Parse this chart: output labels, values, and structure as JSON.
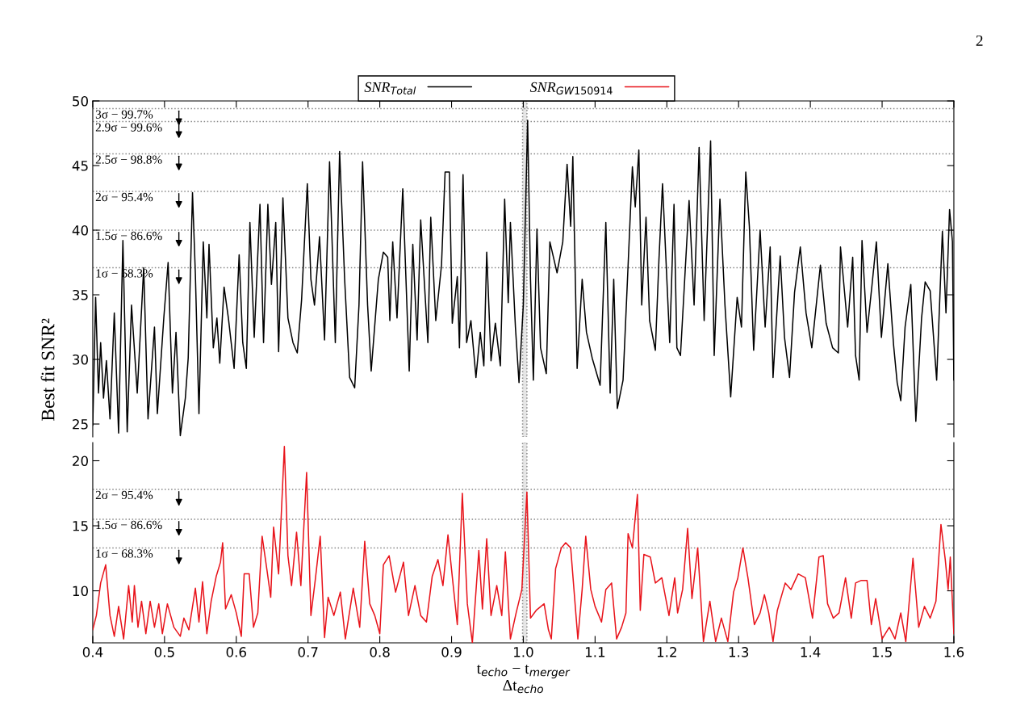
{
  "chart_data": [
    {
      "type": "line",
      "ylabel": "Best fit SNR²",
      "annotations": [
        "2"
      ],
      "legend": "top",
      "tick_labels": "y",
      "marker": "none",
      "line_style": "solid",
      "xlim": [
        0.4,
        1.6
      ],
      "xticks": [
        0.4,
        0.5,
        0.6,
        0.7,
        0.8,
        0.9,
        1.0,
        1.1,
        1.2,
        1.3,
        1.4,
        1.5,
        1.6
      ],
      "ylim": [
        24.0,
        50
      ],
      "yticks": [
        25,
        30,
        35,
        40,
        45,
        50
      ],
      "ref_lines": [
        {
          "axis": "y",
          "value": 49.4,
          "label": "3σ − 99.7%",
          "color": "#888888",
          "line_style": "dotted"
        },
        {
          "axis": "y",
          "value": 48.4,
          "label": "2.9σ − 99.6%",
          "color": "#888888",
          "line_style": "dotted"
        },
        {
          "axis": "y",
          "value": 45.9,
          "label": "2.5σ − 98.8%",
          "color": "#888888",
          "line_style": "dotted"
        },
        {
          "axis": "y",
          "value": 43.0,
          "label": "2σ − 95.4%",
          "color": "#888888",
          "line_style": "dotted"
        },
        {
          "axis": "y",
          "value": 40.0,
          "label": "1.5σ − 86.6%",
          "color": "#888888",
          "line_style": "dotted"
        },
        {
          "axis": "y",
          "value": 37.1,
          "label": "1σ − 68.3%",
          "color": "#888888",
          "line_style": "dotted"
        }
      ],
      "bands": [
        {
          "axis": "x",
          "from": 0.999,
          "to": 1.005,
          "color": "#e6e6e6"
        }
      ],
      "series": [
        {
          "name": "SNR$_{Total}$",
          "color": "#000000",
          "x": [
            0.4,
            0.404,
            0.408,
            0.411,
            0.415,
            0.419,
            0.424,
            0.43,
            0.436,
            0.442,
            0.448,
            0.454,
            0.462,
            0.471,
            0.477,
            0.486,
            0.49,
            0.499,
            0.505,
            0.511,
            0.516,
            0.522,
            0.529,
            0.533,
            0.539,
            0.543,
            0.548,
            0.554,
            0.559,
            0.562,
            0.568,
            0.573,
            0.577,
            0.583,
            0.589,
            0.597,
            0.604,
            0.609,
            0.614,
            0.619,
            0.625,
            0.633,
            0.638,
            0.644,
            0.649,
            0.655,
            0.659,
            0.665,
            0.672,
            0.679,
            0.685,
            0.691,
            0.699,
            0.704,
            0.709,
            0.716,
            0.723,
            0.73,
            0.738,
            0.744,
            0.751,
            0.758,
            0.765,
            0.771,
            0.776,
            0.783,
            0.788,
            0.798,
            0.805,
            0.811,
            0.814,
            0.818,
            0.824,
            0.832,
            0.841,
            0.846,
            0.852,
            0.857,
            0.867,
            0.871,
            0.878,
            0.886,
            0.891,
            0.897,
            0.901,
            0.908,
            0.911,
            0.916,
            0.921,
            0.927,
            0.934,
            0.94,
            0.945,
            0.949,
            0.955,
            0.961,
            0.968,
            0.974,
            0.979,
            0.982,
            0.989,
            0.994,
            1.0,
            1.006,
            1.01,
            1.014,
            1.019,
            1.024,
            1.032,
            1.037,
            1.047,
            1.055,
            1.061,
            1.066,
            1.069,
            1.075,
            1.082,
            1.088,
            1.096,
            1.107,
            1.115,
            1.121,
            1.126,
            1.131,
            1.139,
            1.145,
            1.152,
            1.156,
            1.161,
            1.165,
            1.171,
            1.176,
            1.184,
            1.189,
            1.194,
            1.204,
            1.21,
            1.214,
            1.219,
            1.231,
            1.238,
            1.245,
            1.252,
            1.261,
            1.266,
            1.274,
            1.281,
            1.289,
            1.298,
            1.304,
            1.31,
            1.315,
            1.321,
            1.33,
            1.337,
            1.344,
            1.348,
            1.358,
            1.364,
            1.371,
            1.378,
            1.386,
            1.394,
            1.402,
            1.414,
            1.422,
            1.431,
            1.439,
            1.442,
            1.452,
            1.459,
            1.463,
            1.468,
            1.472,
            1.479,
            1.486,
            1.492,
            1.499,
            1.508,
            1.516,
            1.521,
            1.526,
            1.532,
            1.54,
            1.547,
            1.555,
            1.56,
            1.567,
            1.576,
            1.584,
            1.589,
            1.594,
            1.598,
            1.6
          ],
          "values": [
            24.9,
            34.8,
            27.4,
            31.3,
            27.0,
            29.9,
            25.4,
            33.6,
            24.3,
            39.2,
            24.4,
            34.2,
            27.4,
            37.1,
            25.4,
            32.5,
            25.8,
            33.2,
            37.5,
            27.4,
            32.1,
            24.1,
            27.0,
            30.1,
            42.9,
            36.6,
            25.8,
            39.1,
            33.2,
            38.9,
            30.9,
            33.2,
            29.7,
            35.6,
            33.2,
            29.3,
            38.1,
            31.3,
            29.3,
            40.6,
            31.7,
            42.0,
            31.3,
            42.0,
            35.8,
            40.6,
            30.6,
            42.5,
            33.2,
            31.3,
            30.5,
            34.6,
            43.6,
            36.2,
            34.2,
            39.5,
            31.5,
            45.3,
            31.3,
            46.1,
            36.2,
            28.6,
            27.8,
            34.2,
            45.3,
            34.2,
            29.1,
            36.2,
            38.3,
            37.9,
            33.0,
            39.1,
            33.2,
            43.2,
            29.1,
            38.9,
            31.5,
            40.8,
            31.3,
            41.0,
            33.0,
            37.3,
            44.5,
            44.5,
            32.8,
            36.4,
            30.9,
            44.3,
            31.3,
            33.0,
            28.6,
            32.1,
            29.5,
            38.3,
            29.9,
            32.8,
            29.5,
            42.4,
            34.4,
            40.6,
            32.5,
            28.2,
            34.2,
            48.5,
            36.2,
            28.4,
            40.1,
            30.9,
            28.9,
            39.1,
            36.7,
            39.1,
            45.1,
            40.3,
            45.7,
            29.3,
            36.2,
            32.1,
            30.1,
            28.0,
            40.6,
            27.4,
            36.2,
            26.2,
            28.4,
            36.0,
            44.9,
            41.8,
            46.2,
            34.2,
            41.0,
            33.0,
            30.7,
            37.7,
            43.6,
            31.3,
            42.0,
            30.9,
            30.3,
            42.3,
            34.2,
            46.4,
            33.0,
            46.9,
            30.3,
            42.4,
            34.2,
            27.1,
            34.8,
            32.5,
            44.5,
            40.3,
            30.7,
            40.0,
            32.5,
            38.7,
            28.6,
            38.0,
            31.7,
            28.6,
            35.2,
            38.7,
            33.6,
            30.9,
            37.3,
            32.8,
            30.9,
            30.5,
            38.7,
            32.5,
            37.9,
            30.3,
            28.4,
            39.2,
            32.1,
            35.8,
            39.1,
            31.7,
            37.4,
            31.1,
            28.2,
            26.8,
            32.5,
            35.8,
            25.2,
            33.2,
            36.0,
            35.3,
            28.4,
            39.9,
            33.6,
            41.6,
            39.1,
            28.4
          ]
        }
      ]
    },
    {
      "type": "line",
      "xlabel": "t$_{echo}$ − t$_{merger}$\nΔt$_{echo}$",
      "legend": "top",
      "marker": "none",
      "line_style": "solid",
      "xlim": [
        0.4,
        1.6
      ],
      "xticks": [
        0.4,
        0.5,
        0.6,
        0.7,
        0.8,
        0.9,
        {
          "value": 1.0,
          "label": "1.0"
        },
        1.1,
        1.2,
        1.3,
        1.4,
        1.5,
        1.6
      ],
      "ylim": [
        6,
        21.4
      ],
      "yticks": [
        10,
        15,
        20
      ],
      "ref_lines": [
        {
          "axis": "y",
          "value": 17.8,
          "label": "2σ − 95.4%",
          "color": "#888888",
          "line_style": "dotted"
        },
        {
          "axis": "y",
          "value": 15.5,
          "label": "1.5σ − 86.6%",
          "color": "#888888",
          "line_style": "dotted"
        },
        {
          "axis": "y",
          "value": 13.3,
          "label": "1σ − 68.3%",
          "color": "#888888",
          "line_style": "dotted"
        }
      ],
      "bands": [
        {
          "axis": "x",
          "from": 0.999,
          "to": 1.005,
          "color": "#e6e6e6"
        }
      ],
      "series": [
        {
          "name": "SNR$_{GW150914}$",
          "color": "#e8141b",
          "x": [
            0.4,
            0.405,
            0.411,
            0.418,
            0.424,
            0.43,
            0.436,
            0.443,
            0.45,
            0.455,
            0.458,
            0.463,
            0.468,
            0.474,
            0.48,
            0.486,
            0.492,
            0.497,
            0.504,
            0.513,
            0.522,
            0.527,
            0.534,
            0.543,
            0.548,
            0.553,
            0.559,
            0.565,
            0.572,
            0.578,
            0.581,
            0.585,
            0.593,
            0.6,
            0.607,
            0.611,
            0.618,
            0.624,
            0.63,
            0.636,
            0.643,
            0.648,
            0.652,
            0.659,
            0.667,
            0.672,
            0.677,
            0.684,
            0.69,
            0.698,
            0.704,
            0.71,
            0.717,
            0.723,
            0.728,
            0.736,
            0.745,
            0.752,
            0.763,
            0.772,
            0.779,
            0.786,
            0.793,
            0.8,
            0.805,
            0.813,
            0.822,
            0.833,
            0.84,
            0.849,
            0.857,
            0.865,
            0.873,
            0.881,
            0.888,
            0.895,
            0.901,
            0.908,
            0.915,
            0.922,
            0.929,
            0.938,
            0.943,
            0.949,
            0.955,
            0.963,
            0.97,
            0.975,
            0.982,
            0.99,
            0.998,
            1.005,
            1.01,
            1.018,
            1.029,
            1.035,
            1.039,
            1.045,
            1.053,
            1.059,
            1.066,
            1.076,
            1.082,
            1.087,
            1.094,
            1.1,
            1.109,
            1.115,
            1.123,
            1.13,
            1.137,
            1.143,
            1.146,
            1.152,
            1.159,
            1.163,
            1.168,
            1.177,
            1.184,
            1.193,
            1.203,
            1.211,
            1.215,
            1.222,
            1.229,
            1.235,
            1.243,
            1.251,
            1.26,
            1.268,
            1.276,
            1.285,
            1.293,
            1.299,
            1.306,
            1.313,
            1.322,
            1.33,
            1.336,
            1.342,
            1.348,
            1.354,
            1.365,
            1.373,
            1.383,
            1.393,
            1.403,
            1.412,
            1.418,
            1.424,
            1.432,
            1.44,
            1.449,
            1.457,
            1.463,
            1.471,
            1.479,
            1.485,
            1.491,
            1.5,
            1.51,
            1.518,
            1.526,
            1.533,
            1.543,
            1.551,
            1.559,
            1.567,
            1.575,
            1.582,
            1.588,
            1.592,
            1.595,
            1.6
          ],
          "values": [
            7.0,
            8.1,
            10.6,
            12.0,
            8.1,
            6.5,
            8.8,
            6.3,
            10.4,
            7.6,
            10.4,
            7.2,
            9.2,
            6.7,
            9.2,
            7.2,
            9.0,
            6.7,
            9.0,
            7.2,
            6.5,
            7.9,
            7.0,
            10.2,
            7.6,
            10.7,
            6.7,
            9.2,
            11.1,
            12.2,
            13.7,
            8.6,
            9.7,
            8.3,
            6.5,
            11.3,
            11.3,
            7.2,
            8.3,
            14.2,
            11.5,
            9.5,
            14.9,
            11.3,
            21.1,
            12.7,
            10.4,
            14.5,
            10.4,
            19.1,
            8.1,
            10.8,
            14.2,
            6.4,
            9.5,
            8.1,
            9.9,
            6.3,
            10.2,
            7.2,
            13.8,
            9.0,
            8.1,
            6.7,
            12.0,
            12.7,
            9.9,
            12.2,
            8.1,
            10.4,
            8.1,
            7.6,
            11.1,
            12.4,
            10.4,
            14.3,
            11.1,
            7.4,
            17.5,
            9.0,
            6.0,
            13.1,
            8.6,
            14.0,
            8.1,
            10.4,
            8.1,
            13.0,
            6.3,
            8.3,
            10.1,
            17.6,
            7.9,
            8.5,
            9.0,
            7.0,
            6.3,
            11.7,
            13.3,
            13.7,
            13.3,
            6.3,
            10.1,
            14.2,
            10.1,
            8.8,
            7.6,
            10.1,
            10.6,
            6.3,
            7.2,
            8.3,
            14.4,
            13.3,
            17.4,
            8.5,
            12.8,
            12.6,
            10.6,
            11.0,
            8.1,
            11.0,
            8.3,
            10.1,
            14.8,
            9.4,
            13.3,
            6.1,
            9.2,
            6.1,
            7.9,
            6.1,
            9.9,
            11.0,
            13.3,
            11.0,
            7.4,
            8.3,
            9.7,
            8.3,
            6.1,
            8.5,
            10.6,
            10.1,
            11.3,
            11.0,
            7.9,
            12.6,
            12.7,
            9.0,
            7.9,
            8.3,
            11.0,
            7.9,
            10.6,
            10.8,
            10.8,
            7.4,
            9.4,
            6.3,
            7.2,
            6.3,
            8.3,
            6.1,
            12.5,
            7.2,
            8.8,
            7.9,
            9.2,
            15.1,
            12.4,
            10.1,
            12.6,
            6.7
          ]
        }
      ]
    }
  ]
}
